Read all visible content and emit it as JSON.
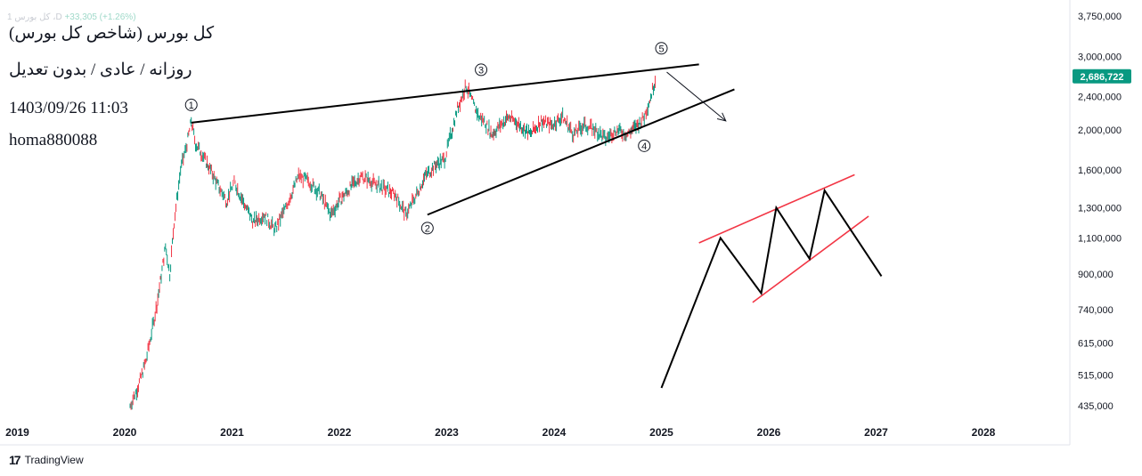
{
  "header": {
    "symbol_faint": "1 کل بورس ،D",
    "change_faint": "+33,305 (+1.26%)",
    "title": "کل بورس (شاخص کل بورس)",
    "subtitle": "روزانه / عادی / بدون تعدیل",
    "datetime": "1403/09/26 11:03",
    "author": "homa880088"
  },
  "price_badge": {
    "value": "2,686,722",
    "color": "#089981"
  },
  "brand": {
    "logo": "17",
    "name": "TradingView"
  },
  "colors": {
    "up": "#089981",
    "down": "#f23645",
    "trend": "#000000",
    "channel": "#f23645"
  },
  "chart_data": {
    "type": "line",
    "y_scale": "log",
    "ylim": [
      400000,
      3900000
    ],
    "y_ticks": [
      3750000,
      3000000,
      2400000,
      2000000,
      1600000,
      1300000,
      1100000,
      900000,
      740000,
      615000,
      515000,
      435000
    ],
    "y_tick_labels": [
      "3,750,000",
      "3,000,000",
      "2,400,000",
      "2,000,000",
      "1,600,000",
      "1,300,000",
      "1,100,000",
      "900,000",
      "740,000",
      "615,000",
      "515,000",
      "435,000"
    ],
    "x_ticks": [
      2019,
      2020,
      2021,
      2022,
      2023,
      2024,
      2025,
      2026,
      2027,
      2028
    ],
    "x_tick_labels": [
      "2019",
      "2020",
      "2021",
      "2022",
      "2023",
      "2024",
      "2025",
      "2026",
      "2027",
      "2028"
    ],
    "last_price": 2686722,
    "series": [
      {
        "x": [
          2020.05,
          2020.12,
          2020.2,
          2020.3,
          2020.38,
          2020.42,
          2020.46,
          2020.52,
          2020.58,
          2020.62,
          2020.66,
          2020.72,
          2020.8,
          2020.88,
          2020.95,
          2021.02,
          2021.1,
          2021.2,
          2021.3,
          2021.4,
          2021.5,
          2021.62,
          2021.72,
          2021.82,
          2021.92,
          2022.0,
          2022.1,
          2022.2,
          2022.3,
          2022.4,
          2022.52,
          2022.62,
          2022.72,
          2022.8,
          2022.9,
          2022.98,
          2023.05,
          2023.1,
          2023.18,
          2023.25,
          2023.3,
          2023.35,
          2023.42,
          2023.5,
          2023.58,
          2023.68,
          2023.78,
          2023.88,
          2023.98,
          2024.08,
          2024.18,
          2024.28,
          2024.38,
          2024.48,
          2024.58,
          2024.68,
          2024.78,
          2024.84,
          2024.9,
          2024.95
        ],
        "values": [
          435000,
          480000,
          560000,
          760000,
          1050000,
          900000,
          1200000,
          1600000,
          1850000,
          2100000,
          1850000,
          1750000,
          1600000,
          1450000,
          1350000,
          1500000,
          1350000,
          1200000,
          1250000,
          1150000,
          1300000,
          1550000,
          1500000,
          1400000,
          1250000,
          1350000,
          1450000,
          1550000,
          1500000,
          1450000,
          1400000,
          1250000,
          1400000,
          1550000,
          1650000,
          1700000,
          2000000,
          2250000,
          2550000,
          2300000,
          2150000,
          2100000,
          1950000,
          2050000,
          2150000,
          2050000,
          1950000,
          2100000,
          2050000,
          2150000,
          1950000,
          2050000,
          2000000,
          1900000,
          2000000,
          1950000,
          2050000,
          2150000,
          2400000,
          2686722
        ]
      }
    ],
    "wave_labels": [
      {
        "label": "1",
        "x": 2020.62,
        "y": 2100000
      },
      {
        "label": "2",
        "x": 2022.82,
        "y": 1250000
      },
      {
        "label": "3",
        "x": 2023.32,
        "y": 2550000
      },
      {
        "label": "4",
        "x": 2024.84,
        "y": 1980000
      },
      {
        "label": "5",
        "x": 2025.0,
        "y": 2900000
      }
    ],
    "trendlines": [
      {
        "points": [
          [
            2020.62,
            2080000
          ],
          [
            2025.35,
            2870000
          ]
        ]
      },
      {
        "points": [
          [
            2022.82,
            1250000
          ],
          [
            2025.68,
            2500000
          ]
        ]
      }
    ],
    "arrow": {
      "from": [
        2025.05,
        2750000
      ],
      "to": [
        2025.6,
        2100000
      ]
    },
    "schematic_zigzag": [
      [
        2025.0,
        480000
      ],
      [
        2025.55,
        1100000
      ],
      [
        2025.93,
        810000
      ],
      [
        2026.07,
        1300000
      ],
      [
        2026.38,
        980000
      ],
      [
        2026.52,
        1430000
      ],
      [
        2027.05,
        890000
      ]
    ],
    "schematic_channel": [
      {
        "points": [
          [
            2025.35,
            1070000
          ],
          [
            2026.8,
            1560000
          ]
        ]
      },
      {
        "points": [
          [
            2025.85,
            770000
          ],
          [
            2026.93,
            1240000
          ]
        ]
      }
    ]
  }
}
